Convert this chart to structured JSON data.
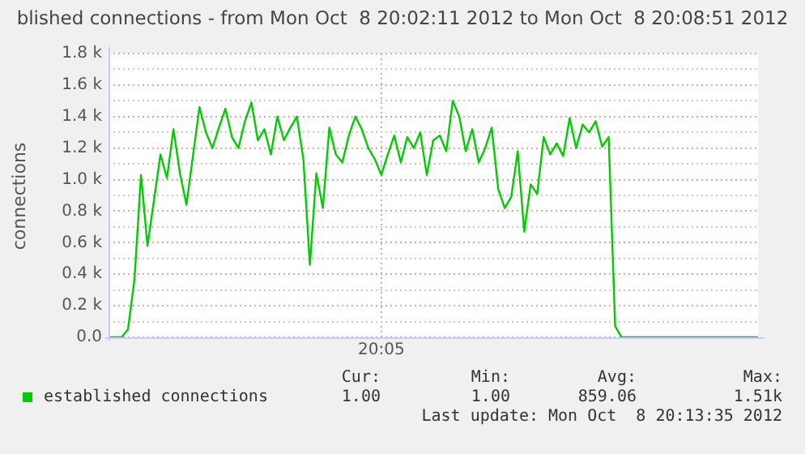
{
  "chart_data": {
    "type": "line",
    "title": "blished connections - from Mon Oct  8 20:02:11 2012 to Mon Oct  8 20:08:51 2012",
    "ylabel": "connections",
    "categories": [
      null,
      null,
      null,
      null,
      null,
      null,
      null,
      null,
      null,
      null,
      null,
      null,
      null,
      null,
      null,
      null,
      null,
      null,
      null,
      null,
      null,
      null,
      null,
      null,
      null,
      null,
      null,
      null,
      null,
      null,
      null,
      null,
      null,
      null,
      null,
      null,
      null,
      null,
      null,
      null,
      null,
      null,
      "20:05",
      null,
      null,
      null,
      null,
      null,
      null,
      null,
      null,
      null,
      null,
      null,
      null,
      null,
      null,
      null,
      null,
      null,
      null,
      null,
      null,
      null,
      null,
      null,
      null,
      null,
      null,
      null,
      null,
      null,
      null,
      null,
      null,
      null,
      null,
      null,
      null,
      null,
      null,
      null,
      null,
      null,
      null,
      null,
      null,
      null,
      null,
      null,
      null,
      null,
      null,
      null,
      null,
      null,
      null,
      null,
      null,
      null,
      null
    ],
    "series": [
      {
        "name": "established connections",
        "color": "#00cc00",
        "values": [
          0,
          0,
          0,
          50,
          370,
          1030,
          580,
          870,
          1160,
          1010,
          1320,
          1040,
          840,
          1150,
          1460,
          1300,
          1200,
          1330,
          1450,
          1270,
          1200,
          1370,
          1490,
          1250,
          1320,
          1160,
          1400,
          1250,
          1330,
          1400,
          1130,
          460,
          1040,
          820,
          1330,
          1160,
          1110,
          1280,
          1400,
          1320,
          1200,
          1130,
          1030,
          1160,
          1280,
          1110,
          1270,
          1200,
          1300,
          1030,
          1250,
          1280,
          1180,
          1500,
          1400,
          1180,
          1320,
          1110,
          1200,
          1330,
          940,
          820,
          890,
          1180,
          670,
          970,
          910,
          1270,
          1160,
          1230,
          1150,
          1390,
          1200,
          1350,
          1300,
          1370,
          1210,
          1270,
          70,
          0,
          0,
          0,
          0,
          0,
          0,
          0,
          0,
          0,
          0,
          0,
          0,
          0,
          0,
          0,
          0,
          0,
          0,
          0,
          0,
          0,
          0
        ]
      }
    ],
    "ylim": [
      0,
      1800
    ],
    "yticks": [
      {
        "value": 0,
        "label": "0.0"
      },
      {
        "value": 100,
        "label": null
      },
      {
        "value": 200,
        "label": "0.2 k"
      },
      {
        "value": 300,
        "label": null
      },
      {
        "value": 400,
        "label": "0.4 k"
      },
      {
        "value": 500,
        "label": null
      },
      {
        "value": 600,
        "label": "0.6 k"
      },
      {
        "value": 700,
        "label": null
      },
      {
        "value": 800,
        "label": "0.8 k"
      },
      {
        "value": 900,
        "label": null
      },
      {
        "value": 1000,
        "label": "1.0 k"
      },
      {
        "value": 1100,
        "label": null
      },
      {
        "value": 1200,
        "label": "1.2 k"
      },
      {
        "value": 1300,
        "label": null
      },
      {
        "value": 1400,
        "label": "1.4 k"
      },
      {
        "value": 1500,
        "label": null
      },
      {
        "value": 1600,
        "label": "1.6 k"
      },
      {
        "value": 1700,
        "label": null
      },
      {
        "value": 1800,
        "label": "1.8 k"
      }
    ],
    "grid": true,
    "legend": "bottom",
    "marker": "none",
    "line_style": "solid",
    "annotations": [
      "Cur:",
      "Min:",
      "Avg:",
      "Max:",
      "1.00",
      "1.00",
      "859.06",
      "1.51k",
      "Last update: Mon Oct  8 20:13:35 2012"
    ]
  }
}
